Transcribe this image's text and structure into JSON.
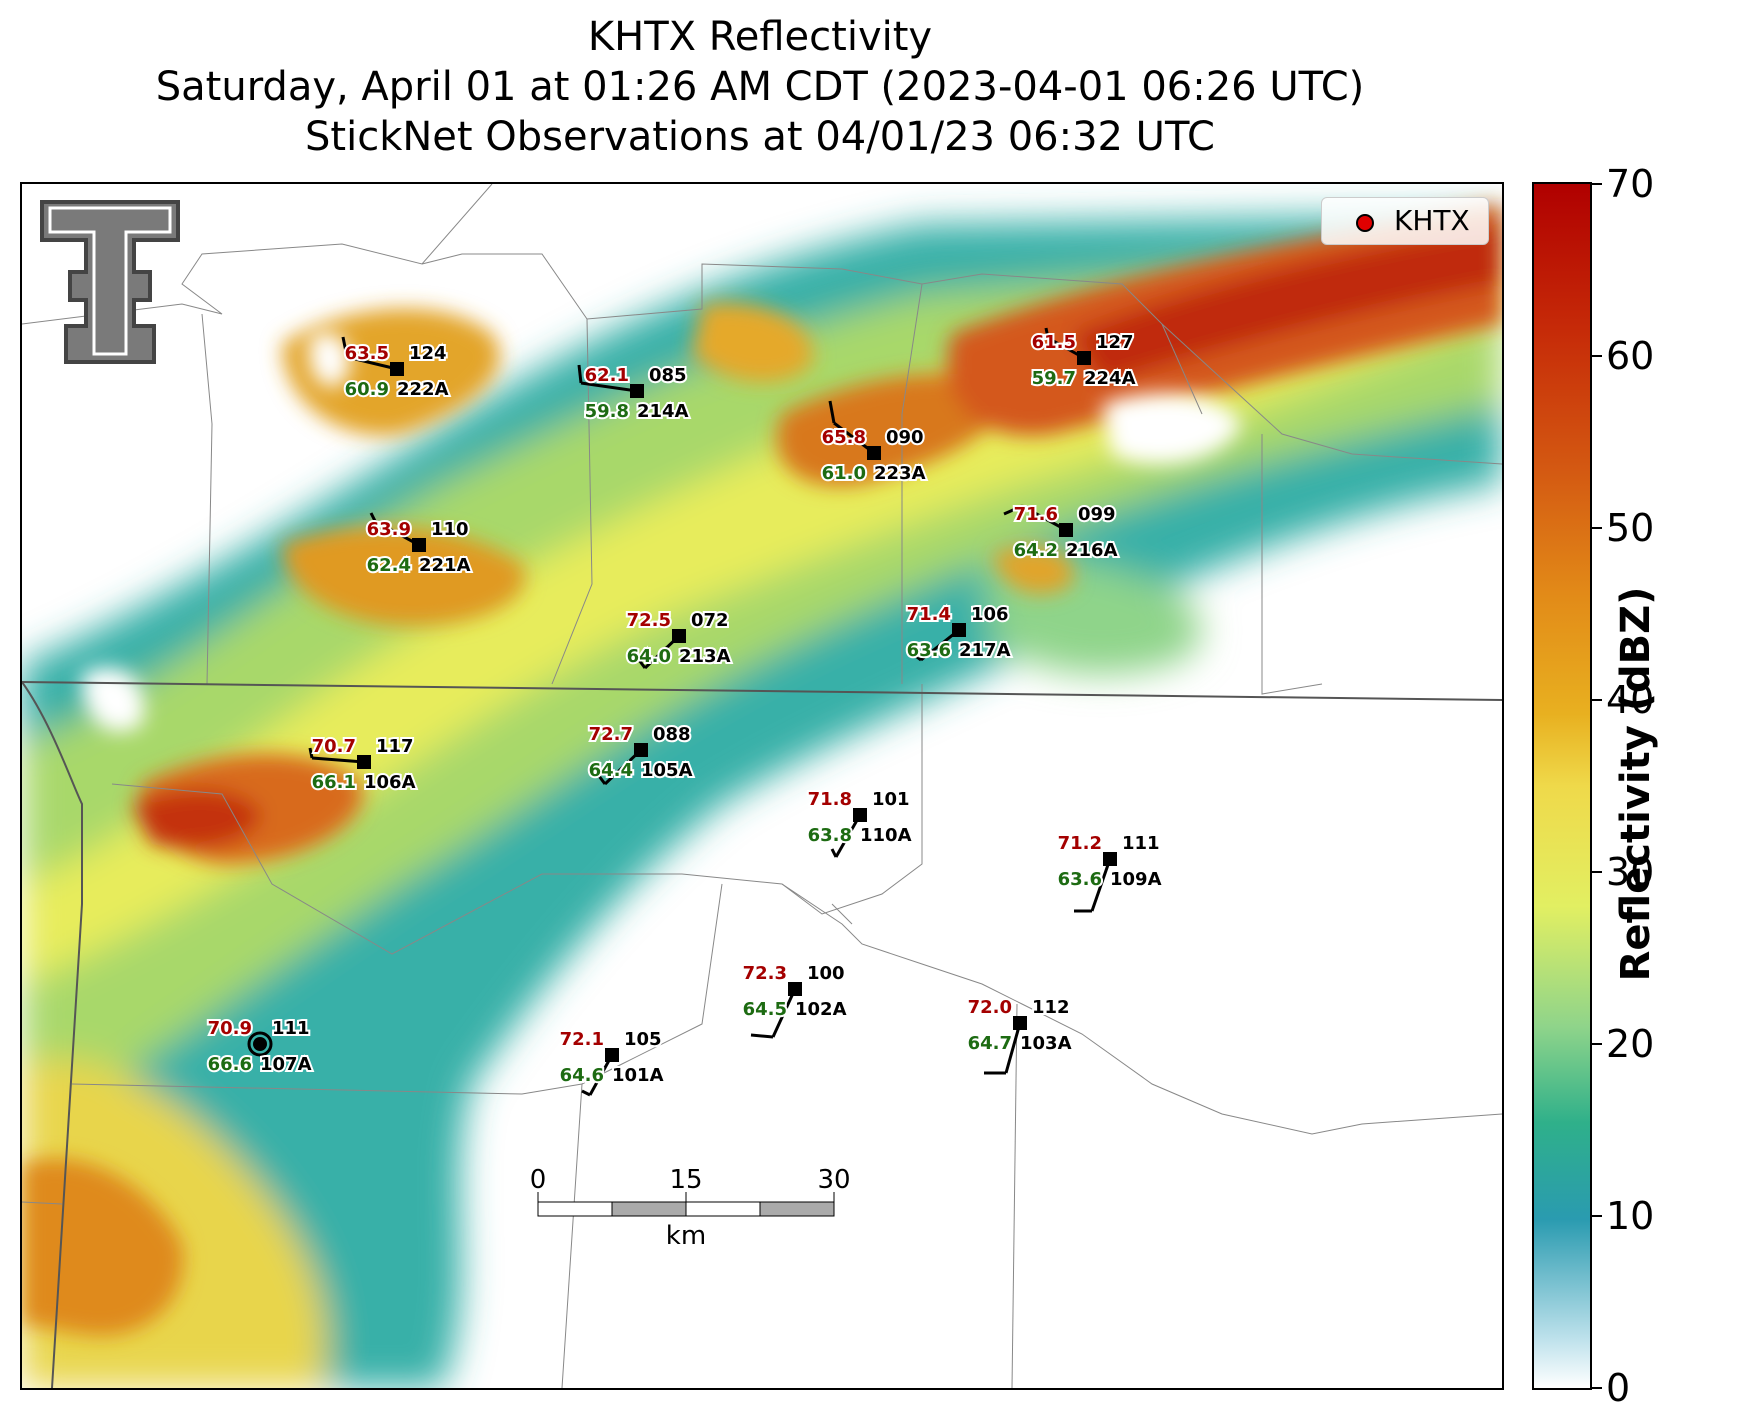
{
  "title": {
    "line1": "KHTX Reflectivity",
    "line2": "Saturday, April 01 at 01:26 AM CDT (2023-04-01 06:26 UTC)",
    "line3": "StickNet Observations at 04/01/23 06:32 UTC"
  },
  "legend": {
    "label": "KHTX",
    "marker_color": "#e00000"
  },
  "colorbar": {
    "title": "Reflectivity (dBZ)",
    "ticks": [
      "0",
      "10",
      "20",
      "30",
      "40",
      "50",
      "60",
      "70"
    ],
    "range": [
      0,
      70
    ]
  },
  "scale_bar": {
    "ticks": [
      "0",
      "15",
      "30"
    ],
    "unit": "km"
  },
  "logo": {
    "icon": "texas-tech-double-t-icon"
  },
  "stations": [
    {
      "temp": "63.5",
      "dew": "60.9",
      "dir": "124",
      "id": "222A"
    },
    {
      "temp": "62.1",
      "dew": "59.8",
      "dir": "085",
      "id": "214A"
    },
    {
      "temp": "65.8",
      "dew": "61.0",
      "dir": "090",
      "id": "223A"
    },
    {
      "temp": "61.5",
      "dew": "59.7",
      "dir": "127",
      "id": "224A"
    },
    {
      "temp": "63.9",
      "dew": "62.4",
      "dir": "110",
      "id": "221A"
    },
    {
      "temp": "71.6",
      "dew": "64.2",
      "dir": "099",
      "id": "216A"
    },
    {
      "temp": "72.5",
      "dew": "64.0",
      "dir": "072",
      "id": "213A"
    },
    {
      "temp": "71.4",
      "dew": "63.6",
      "dir": "106",
      "id": "217A"
    },
    {
      "temp": "70.7",
      "dew": "66.1",
      "dir": "117",
      "id": "106A"
    },
    {
      "temp": "72.7",
      "dew": "64.4",
      "dir": "088",
      "id": "105A"
    },
    {
      "temp": "71.8",
      "dew": "63.8",
      "dir": "101",
      "id": "110A"
    },
    {
      "temp": "71.2",
      "dew": "63.6",
      "dir": "111",
      "id": "109A"
    },
    {
      "temp": "70.9",
      "dew": "66.6",
      "dir": "111",
      "id": "107A"
    },
    {
      "temp": "72.3",
      "dew": "64.5",
      "dir": "100",
      "id": "102A"
    },
    {
      "temp": "72.0",
      "dew": "64.7",
      "dir": "112",
      "id": "103A"
    },
    {
      "temp": "72.1",
      "dew": "64.6",
      "dir": "105",
      "id": "101A"
    }
  ]
}
